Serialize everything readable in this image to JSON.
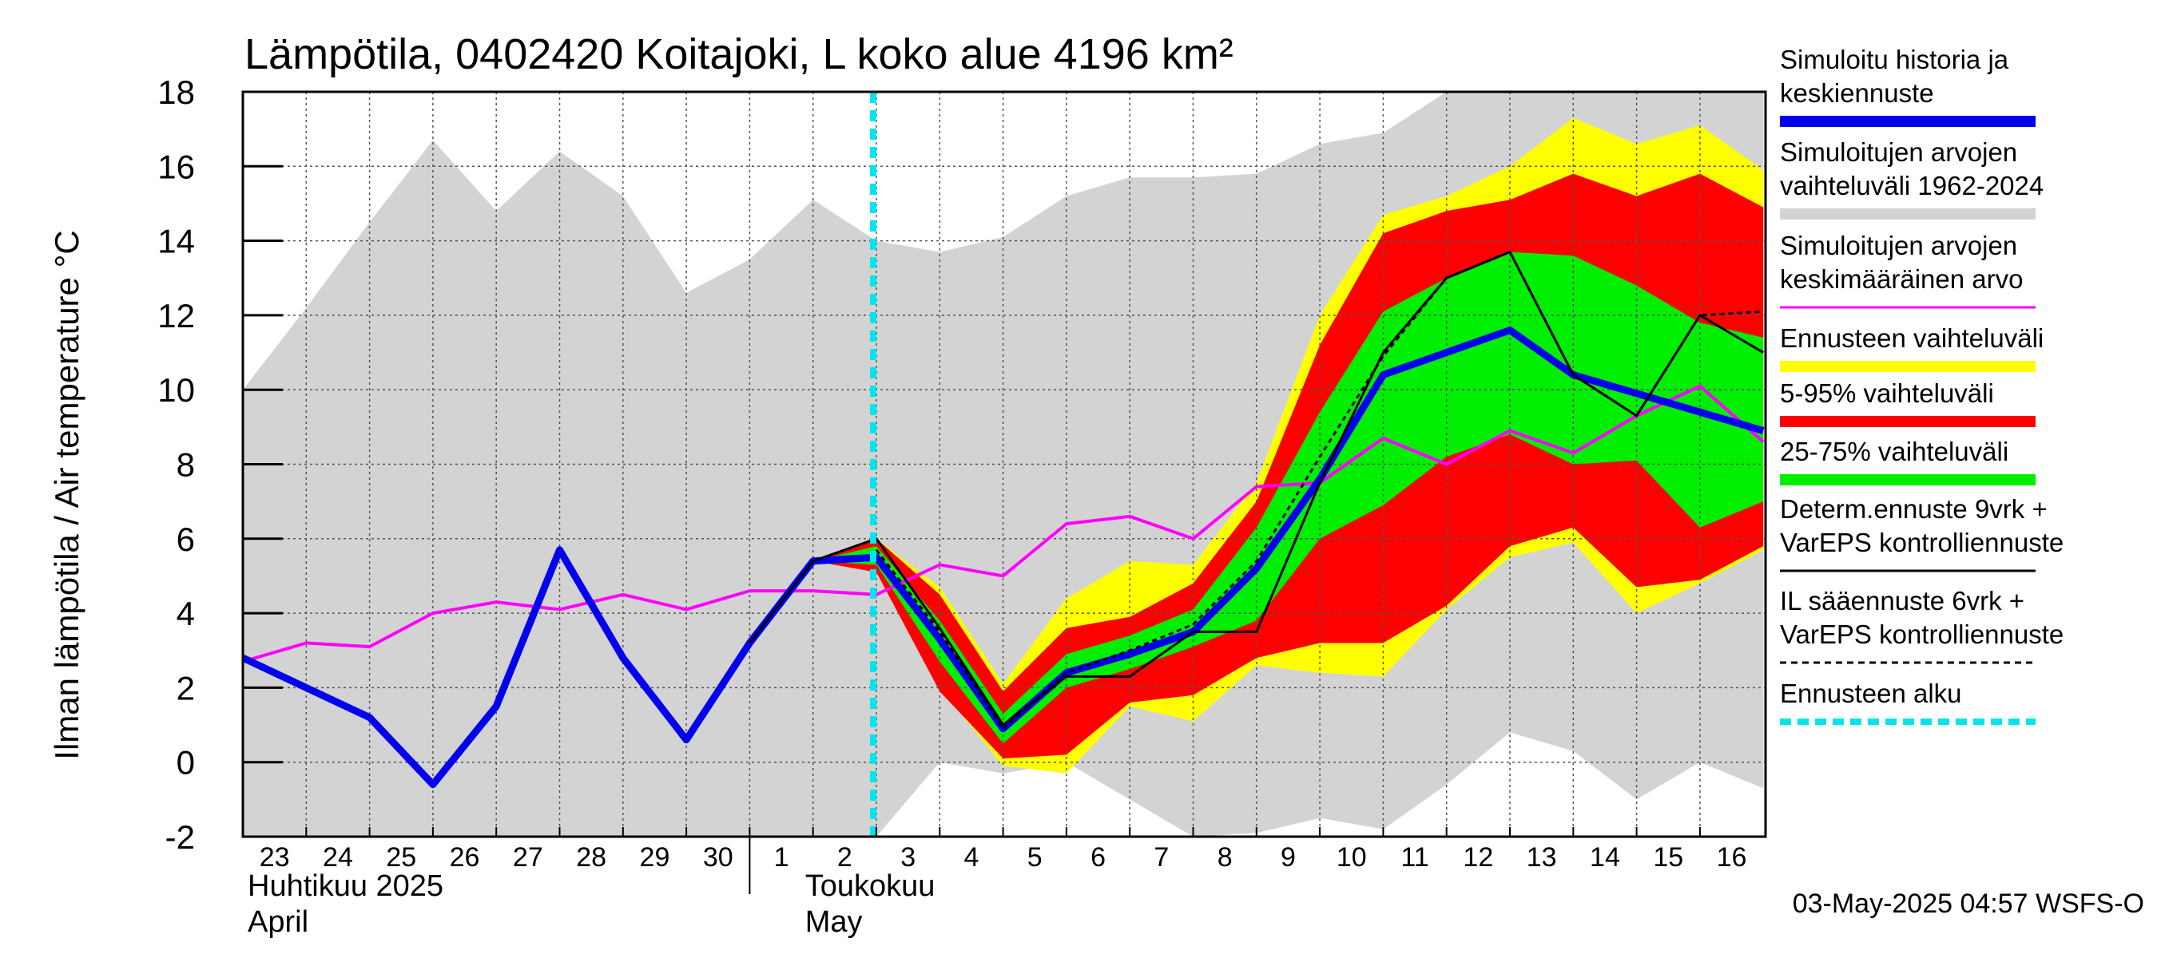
{
  "chart_data": {
    "type": "area",
    "title": "Lämpötila, 0402420 Koitajoki, L koko alue 4196 km²",
    "ylabel": "Ilman lämpötila / Air temperature   °C",
    "ylim": [
      -2,
      18
    ],
    "yticks": [
      "-2",
      "0",
      "2",
      "4",
      "6",
      "8",
      "10",
      "12",
      "14",
      "16",
      "18"
    ],
    "x": [
      "23",
      "24",
      "25",
      "26",
      "27",
      "28",
      "29",
      "30",
      "1",
      "2",
      "3",
      "4",
      "5",
      "6",
      "7",
      "8",
      "9",
      "10",
      "11",
      "12",
      "13",
      "14",
      "15",
      "16",
      "17"
    ],
    "day_labels": [
      "23",
      "24",
      "25",
      "26",
      "27",
      "28",
      "29",
      "30",
      "1",
      "2",
      "3",
      "4",
      "5",
      "6",
      "7",
      "8",
      "9",
      "10",
      "11",
      "12",
      "13",
      "14",
      "15",
      "16"
    ],
    "month_labels": [
      {
        "fi": "Huhtikuu  2025",
        "en": "April"
      },
      {
        "fi": "Toukokuu",
        "en": "May"
      }
    ],
    "forecast_start_index": 10,
    "series": [
      {
        "name": "Simuloitujen arvojen vaihteluväli 1962-2024",
        "color": "#d3d3d3",
        "x_from": 0,
        "upper": [
          10.0,
          12.2,
          14.5,
          16.7,
          14.8,
          16.4,
          15.2,
          12.6,
          13.5,
          15.1,
          14.0,
          13.7,
          14.1,
          15.2,
          15.7,
          15.7,
          15.8,
          16.6,
          16.9,
          18.0,
          18.0,
          18.0,
          18.0,
          18.0,
          18.0
        ],
        "lower": [
          -2,
          -2,
          -2,
          -2,
          -2,
          -2,
          -2,
          -2,
          -2,
          -2,
          -2,
          0.0,
          -0.3,
          0.0,
          -1.0,
          -2.2,
          -1.9,
          -1.5,
          -1.8,
          -0.6,
          0.8,
          0.3,
          -1.0,
          0.0,
          -0.7
        ]
      },
      {
        "name": "Ennusteen vaihteluväli",
        "color": "#ffff00",
        "x_from": 9,
        "upper": [
          5.4,
          6.0,
          4.7,
          2.1,
          4.4,
          5.4,
          5.3,
          7.5,
          12.0,
          14.7,
          15.2,
          16.0,
          17.3,
          16.6,
          17.1,
          15.9
        ],
        "lower": [
          5.4,
          5.4,
          2.0,
          -0.1,
          -0.3,
          1.5,
          1.1,
          2.6,
          2.4,
          2.3,
          4.1,
          5.5,
          5.9,
          4.0,
          4.8,
          5.7
        ]
      },
      {
        "name": "5-95% vaihteluväli",
        "color": "#ff0000",
        "x_from": 9,
        "upper": [
          5.4,
          6.0,
          4.5,
          1.9,
          3.6,
          3.9,
          4.8,
          7.0,
          11.2,
          14.2,
          14.8,
          15.1,
          15.8,
          15.2,
          15.8,
          14.9
        ],
        "lower": [
          5.4,
          5.1,
          1.9,
          0.1,
          0.2,
          1.6,
          1.8,
          2.8,
          3.2,
          3.2,
          4.2,
          5.8,
          6.3,
          4.7,
          4.9,
          5.8
        ]
      },
      {
        "name": "25-75% vaihteluväli",
        "color": "#00ee00",
        "x_from": 9,
        "upper": [
          5.4,
          5.8,
          3.8,
          1.3,
          2.9,
          3.4,
          4.1,
          6.3,
          9.4,
          12.1,
          13.0,
          13.7,
          13.6,
          12.8,
          11.8,
          11.4
        ],
        "lower": [
          5.4,
          5.3,
          2.7,
          0.5,
          2.0,
          2.5,
          3.1,
          3.8,
          6.0,
          6.9,
          8.2,
          8.8,
          8.0,
          8.1,
          6.3,
          7.0
        ]
      }
    ],
    "lines": [
      {
        "name": "Simuloitujen arvojen keskimääräinen arvo",
        "color": "#ff00ff",
        "x_from": 0,
        "values": [
          2.7,
          3.2,
          3.1,
          4.0,
          4.3,
          4.1,
          4.5,
          4.1,
          4.6,
          4.6,
          4.5,
          5.3,
          5.0,
          6.4,
          6.6,
          6.0,
          7.4,
          7.5,
          8.7,
          8.0,
          8.9,
          8.3,
          9.3,
          10.1,
          8.6
        ]
      },
      {
        "name": "Simuloitu historia ja keskiennuste",
        "color": "#0000ee",
        "x_from": 0,
        "values": [
          2.8,
          2.0,
          1.2,
          -0.6,
          1.5,
          5.7,
          2.8,
          0.6,
          3.2,
          5.4,
          5.5,
          3.3,
          0.9,
          2.4,
          2.9,
          3.5,
          5.2,
          7.6,
          10.4,
          11.0,
          11.6,
          10.4,
          9.9,
          9.4,
          8.9
        ]
      },
      {
        "name": "Determ.ennuste 9vrk + VarEPS kontrolliennuste",
        "color": "#000000",
        "x_from": 8,
        "values": [
          3.2,
          5.4,
          6.0,
          3.6,
          1.0,
          2.3,
          2.3,
          3.5,
          3.5,
          7.5,
          11.0,
          13.0,
          13.7,
          10.4,
          9.3,
          12.0,
          11.0
        ]
      },
      {
        "name": "IL sääennuste 6vrk + VarEPS kontrolliennuste",
        "color": "#000000",
        "dashed": true,
        "x_from": 10,
        "values": [
          5.7,
          3.5,
          0.9,
          2.4,
          3.0,
          3.7,
          5.4,
          8.2,
          10.9,
          13.0,
          13.7,
          10.4,
          9.3,
          12.0,
          12.1
        ]
      }
    ],
    "legend": [
      {
        "lines": [
          "Simuloitu historia ja",
          "keskiennuste"
        ],
        "color": "#0000ee",
        "style": "thick"
      },
      {
        "lines": [
          "Simuloitujen arvojen",
          "vaihteluväli 1962-2024"
        ],
        "color": "#d3d3d3",
        "style": "thick"
      },
      {
        "lines": [
          "Simuloitujen arvojen",
          "keskimääräinen arvo"
        ],
        "color": "#ff00ff",
        "style": "thin"
      },
      {
        "lines": [
          "Ennusteen vaihteluväli"
        ],
        "color": "#ffff00",
        "style": "thick"
      },
      {
        "lines": [
          "5-95% vaihteluväli"
        ],
        "color": "#ff0000",
        "style": "thick"
      },
      {
        "lines": [
          "25-75% vaihteluväli"
        ],
        "color": "#00ee00",
        "style": "thick"
      },
      {
        "lines": [
          "Determ.ennuste 9vrk +",
          "VarEPS kontrolliennuste"
        ],
        "color": "#000000",
        "style": "thin"
      },
      {
        "lines": [
          "IL sääennuste 6vrk  +",
          "  VarEPS kontrolliennuste"
        ],
        "color": "#000000",
        "style": "dashed"
      },
      {
        "lines": [
          "Ennusteen alku"
        ],
        "color": "#00e5ee",
        "style": "dotted"
      }
    ],
    "timestamp": "03-May-2025 04:57 WSFS-O"
  }
}
